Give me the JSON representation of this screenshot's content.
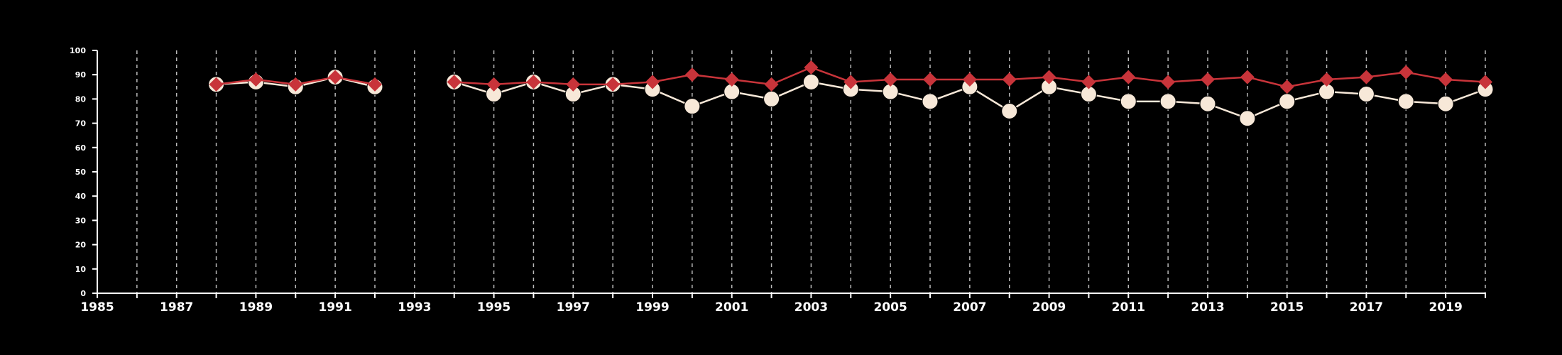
{
  "chart_data": {
    "type": "line",
    "title": "",
    "xlabel": "",
    "ylabel": "",
    "xlim": [
      1985,
      2020
    ],
    "ylim": [
      0,
      100
    ],
    "x_ticks": [
      "1985",
      "1987",
      "1989",
      "1991",
      "1993",
      "1995",
      "1997",
      "1999",
      "2001",
      "2003",
      "2005",
      "2007",
      "2009",
      "2011",
      "2013",
      "2015",
      "2017",
      "2019"
    ],
    "y_ticks": [
      "0",
      "10",
      "20",
      "30",
      "40",
      "50",
      "60",
      "70",
      "80",
      "90",
      "100"
    ],
    "grid": "vertical dashed lines at every year",
    "legend": "none",
    "series": [
      {
        "marker": "circle",
        "color": "#f7e8d8",
        "points": [
          [
            1988,
            86
          ],
          [
            1989,
            87
          ],
          [
            1990,
            85
          ],
          [
            1991,
            89
          ],
          [
            1992,
            85
          ],
          [
            1994,
            87
          ],
          [
            1995,
            82
          ],
          [
            1996,
            87
          ],
          [
            1997,
            82
          ],
          [
            1998,
            86
          ],
          [
            1999,
            84
          ],
          [
            2000,
            77
          ],
          [
            2001,
            83
          ],
          [
            2002,
            80
          ],
          [
            2003,
            87
          ],
          [
            2004,
            84
          ],
          [
            2005,
            83
          ],
          [
            2006,
            79
          ],
          [
            2007,
            85
          ],
          [
            2008,
            75
          ],
          [
            2009,
            85
          ],
          [
            2010,
            82
          ],
          [
            2011,
            79
          ],
          [
            2012,
            79
          ],
          [
            2013,
            78
          ],
          [
            2014,
            72
          ],
          [
            2015,
            79
          ],
          [
            2016,
            83
          ],
          [
            2017,
            82
          ],
          [
            2018,
            79
          ],
          [
            2019,
            78
          ],
          [
            2020,
            84
          ]
        ]
      },
      {
        "marker": "diamond",
        "color": "#c8343a",
        "points": [
          [
            1988,
            86
          ],
          [
            1989,
            88
          ],
          [
            1990,
            86
          ],
          [
            1991,
            89
          ],
          [
            1992,
            86
          ],
          [
            1994,
            87
          ],
          [
            1995,
            86
          ],
          [
            1996,
            87
          ],
          [
            1997,
            86
          ],
          [
            1998,
            86
          ],
          [
            1999,
            87
          ],
          [
            2000,
            90
          ],
          [
            2001,
            88
          ],
          [
            2002,
            86
          ],
          [
            2003,
            93
          ],
          [
            2004,
            87
          ],
          [
            2005,
            88
          ],
          [
            2006,
            88
          ],
          [
            2007,
            88
          ],
          [
            2008,
            88
          ],
          [
            2009,
            89
          ],
          [
            2010,
            87
          ],
          [
            2011,
            89
          ],
          [
            2012,
            87
          ],
          [
            2013,
            88
          ],
          [
            2014,
            89
          ],
          [
            2015,
            85
          ],
          [
            2016,
            88
          ],
          [
            2017,
            89
          ],
          [
            2018,
            91
          ],
          [
            2019,
            88
          ],
          [
            2020,
            87
          ]
        ]
      }
    ]
  }
}
